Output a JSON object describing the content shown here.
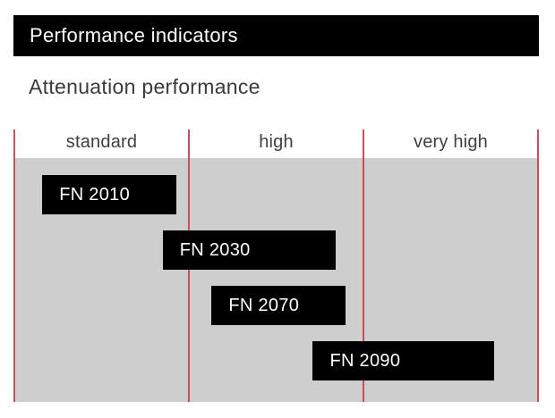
{
  "header": {
    "title": "Performance indicators"
  },
  "subtitle": "Attenuation performance",
  "colors": {
    "header_bg": "#000000",
    "header_text": "#ffffff",
    "plot_bg": "#cfcece",
    "grid_line": "#c9505a",
    "bar_bg": "#000000",
    "bar_text": "#ffffff",
    "label_text": "#3f3f3f"
  },
  "chart_data": {
    "type": "bar",
    "orientation": "horizontal-range",
    "title": "Attenuation performance",
    "categories": [
      "standard",
      "high",
      "very high"
    ],
    "x_axis": {
      "min": 0,
      "max": 3,
      "gridlines_at": [
        0,
        1,
        2,
        3
      ],
      "grid": "on"
    },
    "legend": "none",
    "series": [
      {
        "name": "FN 2010",
        "range": [
          0.16,
          0.93
        ]
      },
      {
        "name": "FN 2030",
        "range": [
          0.85,
          1.84
        ]
      },
      {
        "name": "FN 2070",
        "range": [
          1.13,
          1.9
        ]
      },
      {
        "name": "FN 2090",
        "range": [
          1.71,
          2.75
        ]
      }
    ]
  }
}
